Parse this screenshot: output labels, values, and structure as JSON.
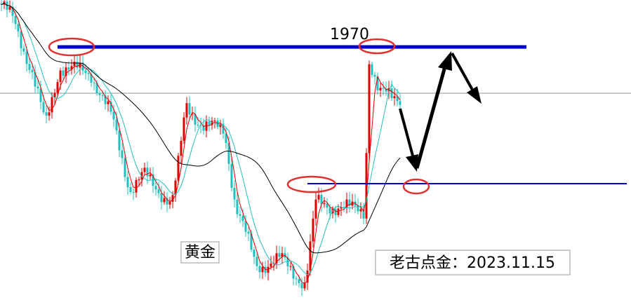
{
  "annotations": {
    "level": "1970",
    "instrument": "黄金",
    "signature": "老古点金：2023.11.15"
  }
}
